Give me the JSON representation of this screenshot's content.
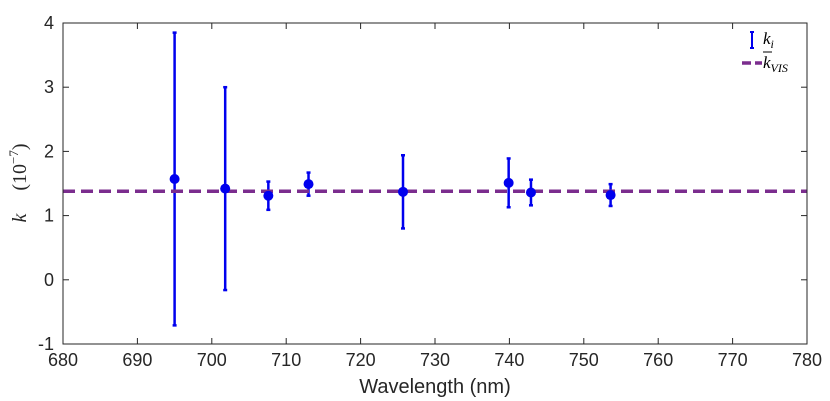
{
  "chart_data": {
    "type": "scatter",
    "xlabel": "Wavelength (nm)",
    "ylabel": {
      "symbol": "k",
      "unit_prefix": "(10",
      "unit_exponent": "−7",
      "unit_suffix": ")"
    },
    "xlim": [
      680,
      780
    ],
    "ylim": [
      -1,
      4
    ],
    "xticks": [
      "680",
      "690",
      "700",
      "710",
      "720",
      "730",
      "740",
      "750",
      "760",
      "770",
      "780"
    ],
    "yticks": [
      "-1",
      "0",
      "1",
      "2",
      "3",
      "4"
    ],
    "grid": false,
    "legend_position": "top-right",
    "series": [
      {
        "name": "k_i",
        "legend_main": "k",
        "legend_sub": "i",
        "kind": "errorbar",
        "color": "#0000ee",
        "points": [
          {
            "x": 695.0,
            "y": 1.57,
            "low": -0.71,
            "high": 3.85
          },
          {
            "x": 701.8,
            "y": 1.42,
            "low": -0.16,
            "high": 3.0
          },
          {
            "x": 707.6,
            "y": 1.31,
            "low": 1.09,
            "high": 1.53
          },
          {
            "x": 713.0,
            "y": 1.49,
            "low": 1.31,
            "high": 1.67
          },
          {
            "x": 725.7,
            "y": 1.37,
            "low": 0.8,
            "high": 1.94
          },
          {
            "x": 739.9,
            "y": 1.51,
            "low": 1.13,
            "high": 1.89
          },
          {
            "x": 742.9,
            "y": 1.36,
            "low": 1.16,
            "high": 1.56
          },
          {
            "x": 753.6,
            "y": 1.32,
            "low": 1.15,
            "high": 1.49
          }
        ]
      },
      {
        "name": "k_VIS",
        "legend_main": "k",
        "legend_sub": "VIS",
        "kind": "hline",
        "color": "#7b2d8e",
        "value": 1.38,
        "dash": "dashed"
      }
    ]
  }
}
